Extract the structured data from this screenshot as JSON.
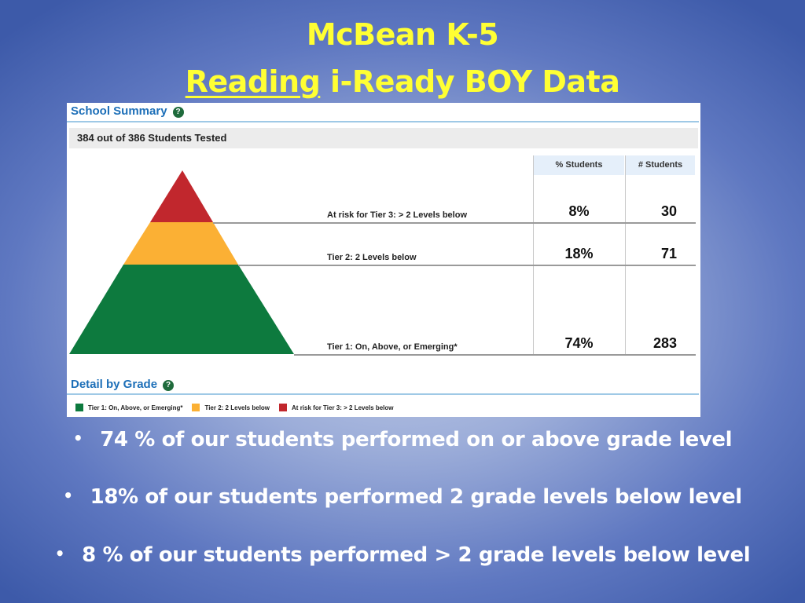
{
  "title": {
    "line1": "McBean K-5",
    "line2_underlined": "Reading",
    "line2_rest": " i-Ready BOY Data"
  },
  "panel": {
    "summary_heading": "School Summary",
    "help_icon": "?",
    "tested": "384 out of 386 Students Tested",
    "columns": {
      "percent": "% Students",
      "count": "# Students"
    },
    "tiers": [
      {
        "label": "At risk for Tier 3: > 2 Levels below",
        "percent": "8%",
        "count": "30",
        "color": "#c1272d"
      },
      {
        "label": "Tier 2: 2 Levels below",
        "percent": "18%",
        "count": "71",
        "color": "#fbb034"
      },
      {
        "label": "Tier 1: On, Above, or Emerging*",
        "percent": "74%",
        "count": "283",
        "color": "#0d7a3e"
      }
    ],
    "detail_heading": "Detail by Grade",
    "legend": [
      {
        "label": "Tier 1: On, Above, or Emerging*",
        "color": "#0d7a3e"
      },
      {
        "label": "Tier 2: 2 Levels below",
        "color": "#fbb034"
      },
      {
        "label": "At risk for Tier 3: > 2 Levels below",
        "color": "#c1272d"
      }
    ]
  },
  "bullets": [
    "74 % of our students performed on or above grade level",
    "18% of our students performed 2 grade levels below level",
    "8 % of our students performed > 2 grade levels below level"
  ],
  "bullet_glyph": "•"
}
